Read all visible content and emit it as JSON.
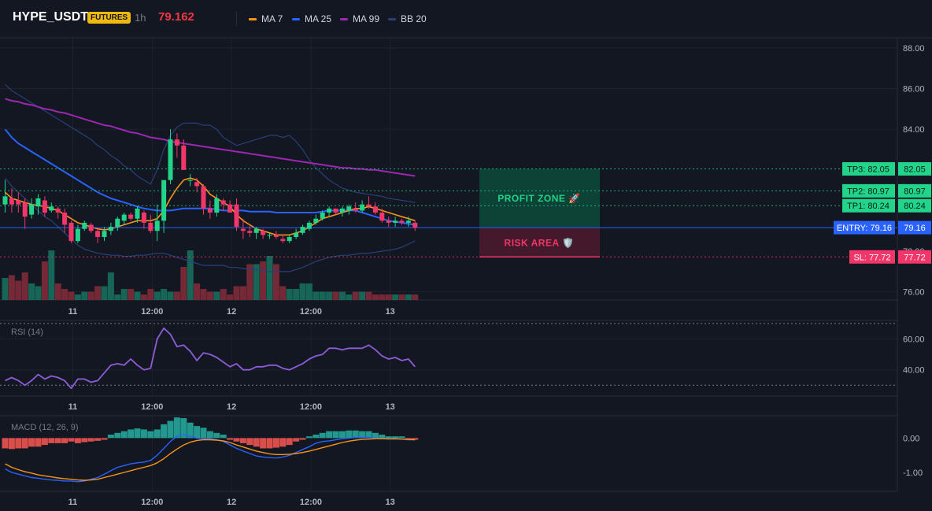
{
  "header": {
    "symbol": "HYPE_USDT",
    "badge": "FUTURES",
    "interval": "1h",
    "last_price": "79.162",
    "indicators": [
      {
        "label": "MA 7",
        "color": "#f7931a"
      },
      {
        "label": "MA 25",
        "color": "#2962ff"
      },
      {
        "label": "MA 99",
        "color": "#9c27b0"
      },
      {
        "label": "BB 20",
        "color": "#2a3f7a"
      }
    ]
  },
  "colors": {
    "up": "#22d48a",
    "down": "#f23669",
    "vol_up": "#16695a",
    "vol_down": "#7a2a38",
    "ma7": "#f7931a",
    "ma25": "#2962ff",
    "ma99": "#9c27b0",
    "bb": "#2a3f7a",
    "entry": "#2962ff",
    "tp": "#22d48a",
    "sl": "#f23669",
    "rsi": "#8e5cd9",
    "macd": "#2962ff",
    "signal": "#f7931a",
    "hist_pos": "#26a69a",
    "hist_neg": "#ef5350"
  },
  "x_axis": {
    "labels": [
      {
        "label": "11",
        "index": 10
      },
      {
        "label": "12:00",
        "index": 22
      },
      {
        "label": "12",
        "index": 34
      },
      {
        "label": "12:00",
        "index": 46
      },
      {
        "label": "13",
        "index": 58
      }
    ]
  },
  "price_pane": {
    "range": [
      75.6,
      88.5
    ],
    "ticks": [
      "88.00",
      "86.00",
      "84.00",
      "76.00"
    ],
    "tick_values": [
      88,
      86,
      84,
      76
    ],
    "hidden_tick": "78.00",
    "hidden_tick_value": 78,
    "bars": [
      {
        "o": 80.3,
        "h": 81.5,
        "l": 79.9,
        "c": 80.7
      },
      {
        "o": 80.6,
        "h": 81.1,
        "l": 79.9,
        "c": 80.3
      },
      {
        "o": 80.5,
        "h": 80.9,
        "l": 79.9,
        "c": 80.3
      },
      {
        "o": 80.4,
        "h": 80.6,
        "l": 79.1,
        "c": 79.7
      },
      {
        "o": 79.8,
        "h": 80.6,
        "l": 79.6,
        "c": 80.3
      },
      {
        "o": 80.2,
        "h": 80.8,
        "l": 79.8,
        "c": 80.6
      },
      {
        "o": 80.5,
        "h": 80.7,
        "l": 79.7,
        "c": 79.9
      },
      {
        "o": 80.0,
        "h": 80.4,
        "l": 79.9,
        "c": 80.2
      },
      {
        "o": 80.1,
        "h": 80.2,
        "l": 79.6,
        "c": 79.9
      },
      {
        "o": 79.9,
        "h": 80.1,
        "l": 78.9,
        "c": 79.3
      },
      {
        "o": 79.4,
        "h": 79.5,
        "l": 78.4,
        "c": 78.5
      },
      {
        "o": 78.5,
        "h": 79.3,
        "l": 78.4,
        "c": 79.1
      },
      {
        "o": 79.1,
        "h": 79.5,
        "l": 79.0,
        "c": 79.4
      },
      {
        "o": 79.3,
        "h": 79.4,
        "l": 78.9,
        "c": 79.0
      },
      {
        "o": 79.0,
        "h": 79.1,
        "l": 78.4,
        "c": 78.7
      },
      {
        "o": 78.7,
        "h": 79.2,
        "l": 78.5,
        "c": 79.0
      },
      {
        "o": 79.0,
        "h": 79.4,
        "l": 78.8,
        "c": 79.2
      },
      {
        "o": 79.2,
        "h": 79.7,
        "l": 79.0,
        "c": 79.6
      },
      {
        "o": 79.5,
        "h": 79.9,
        "l": 79.3,
        "c": 79.8
      },
      {
        "o": 79.8,
        "h": 79.9,
        "l": 79.5,
        "c": 79.6
      },
      {
        "o": 79.6,
        "h": 80.2,
        "l": 79.4,
        "c": 80.1
      },
      {
        "o": 79.9,
        "h": 80.0,
        "l": 79.1,
        "c": 79.4
      },
      {
        "o": 79.4,
        "h": 79.8,
        "l": 78.9,
        "c": 79.0
      },
      {
        "o": 79.0,
        "h": 80.3,
        "l": 78.5,
        "c": 79.5
      },
      {
        "o": 79.5,
        "h": 80.5,
        "l": 78.9,
        "c": 81.5
      },
      {
        "o": 81.5,
        "h": 84.0,
        "l": 81.3,
        "c": 83.5
      },
      {
        "o": 83.5,
        "h": 83.8,
        "l": 82.6,
        "c": 83.2
      },
      {
        "o": 83.2,
        "h": 83.5,
        "l": 82.0,
        "c": 82.0
      },
      {
        "o": 81.5,
        "h": 81.8,
        "l": 81.2,
        "c": 81.5
      },
      {
        "o": 81.4,
        "h": 81.6,
        "l": 80.9,
        "c": 81.2
      },
      {
        "o": 81.2,
        "h": 81.3,
        "l": 79.8,
        "c": 80.1
      },
      {
        "o": 80.1,
        "h": 80.5,
        "l": 79.6,
        "c": 79.9
      },
      {
        "o": 79.9,
        "h": 80.8,
        "l": 79.7,
        "c": 80.6
      },
      {
        "o": 80.5,
        "h": 80.6,
        "l": 80.0,
        "c": 80.3
      },
      {
        "o": 80.3,
        "h": 80.5,
        "l": 79.9,
        "c": 79.9
      },
      {
        "o": 80.3,
        "h": 80.6,
        "l": 79.0,
        "c": 79.2
      },
      {
        "o": 79.1,
        "h": 79.6,
        "l": 78.6,
        "c": 79.0
      },
      {
        "o": 79.0,
        "h": 79.3,
        "l": 78.7,
        "c": 78.9
      },
      {
        "o": 78.9,
        "h": 79.2,
        "l": 78.6,
        "c": 79.1
      },
      {
        "o": 79.0,
        "h": 79.1,
        "l": 78.6,
        "c": 78.8
      },
      {
        "o": 78.8,
        "h": 78.9,
        "l": 78.6,
        "c": 78.8
      },
      {
        "o": 78.8,
        "h": 79.0,
        "l": 78.6,
        "c": 78.7
      },
      {
        "o": 78.6,
        "h": 78.8,
        "l": 78.4,
        "c": 78.5
      },
      {
        "o": 78.5,
        "h": 78.8,
        "l": 78.4,
        "c": 78.7
      },
      {
        "o": 78.7,
        "h": 79.1,
        "l": 78.6,
        "c": 78.9
      },
      {
        "o": 78.9,
        "h": 79.3,
        "l": 78.8,
        "c": 79.2
      },
      {
        "o": 79.1,
        "h": 79.5,
        "l": 79.0,
        "c": 79.4
      },
      {
        "o": 79.4,
        "h": 79.8,
        "l": 79.3,
        "c": 79.6
      },
      {
        "o": 79.6,
        "h": 80.0,
        "l": 79.5,
        "c": 79.9
      },
      {
        "o": 79.9,
        "h": 80.2,
        "l": 79.7,
        "c": 80.1
      },
      {
        "o": 80.1,
        "h": 80.1,
        "l": 79.8,
        "c": 79.9
      },
      {
        "o": 79.9,
        "h": 80.2,
        "l": 79.7,
        "c": 80.1
      },
      {
        "o": 80.0,
        "h": 80.3,
        "l": 79.8,
        "c": 80.2
      },
      {
        "o": 80.1,
        "h": 80.4,
        "l": 79.9,
        "c": 80.0
      },
      {
        "o": 80.0,
        "h": 80.5,
        "l": 79.9,
        "c": 80.3
      },
      {
        "o": 80.3,
        "h": 80.7,
        "l": 80.1,
        "c": 80.2
      },
      {
        "o": 80.2,
        "h": 80.4,
        "l": 79.8,
        "c": 79.9
      },
      {
        "o": 79.9,
        "h": 80.1,
        "l": 79.4,
        "c": 79.5
      },
      {
        "o": 79.5,
        "h": 79.7,
        "l": 79.2,
        "c": 79.4
      },
      {
        "o": 79.4,
        "h": 79.7,
        "l": 79.2,
        "c": 79.5
      },
      {
        "o": 79.5,
        "h": 79.6,
        "l": 79.3,
        "c": 79.4
      },
      {
        "o": 79.4,
        "h": 79.7,
        "l": 79.2,
        "c": 79.5
      },
      {
        "o": 79.4,
        "h": 79.5,
        "l": 79.0,
        "c": 79.16
      }
    ],
    "volumes": [
      8,
      9,
      7,
      10,
      6,
      5,
      14,
      18,
      6,
      4,
      3,
      2,
      3,
      3,
      5,
      5,
      10,
      2,
      4,
      4,
      3,
      2,
      4,
      3,
      4,
      3,
      3,
      12,
      18,
      6,
      4,
      3,
      3,
      4,
      2,
      5,
      5,
      13,
      13,
      14,
      16,
      13,
      5,
      4,
      4,
      6,
      6,
      3,
      3,
      3,
      3,
      3,
      2,
      3,
      3,
      3,
      2,
      2,
      2,
      2,
      2,
      2,
      2
    ],
    "volume_max": 20,
    "ma7": [
      80.9,
      80.6,
      80.5,
      80.4,
      80.3,
      80.25,
      80.2,
      80.1,
      80.0,
      79.8,
      79.6,
      79.4,
      79.3,
      79.2,
      79.1,
      79.05,
      79.1,
      79.2,
      79.3,
      79.4,
      79.5,
      79.5,
      79.5,
      79.6,
      80.0,
      80.6,
      81.1,
      81.5,
      81.6,
      81.5,
      81.2,
      80.8,
      80.6,
      80.4,
      80.2,
      79.8,
      79.5,
      79.3,
      79.1,
      79.0,
      78.9,
      78.8,
      78.8,
      78.8,
      78.9,
      79.0,
      79.2,
      79.4,
      79.6,
      79.7,
      79.8,
      79.9,
      80.0,
      80.1,
      80.1,
      80.2,
      80.1,
      80.0,
      79.9,
      79.8,
      79.7,
      79.6,
      79.5
    ],
    "ma25": [
      84.0,
      83.6,
      83.3,
      83.1,
      82.9,
      82.7,
      82.5,
      82.3,
      82.1,
      81.9,
      81.7,
      81.5,
      81.3,
      81.1,
      80.9,
      80.75,
      80.6,
      80.5,
      80.4,
      80.3,
      80.2,
      80.1,
      80.05,
      80.0,
      80.0,
      80.0,
      80.05,
      80.1,
      80.1,
      80.1,
      80.1,
      80.1,
      80.05,
      80.0,
      80.0,
      80.0,
      80.0,
      79.95,
      79.95,
      79.95,
      79.95,
      79.9,
      79.9,
      79.9,
      79.9,
      79.9,
      79.9,
      79.9,
      79.95,
      80.0,
      80.0,
      80.0,
      80.0,
      80.0,
      79.9,
      79.8,
      79.7,
      79.6,
      79.5,
      79.45,
      79.4,
      79.35,
      79.3
    ],
    "ma99": [
      85.5,
      85.4,
      85.35,
      85.25,
      85.2,
      85.1,
      85.0,
      84.95,
      84.85,
      84.8,
      84.7,
      84.6,
      84.5,
      84.4,
      84.3,
      84.2,
      84.15,
      84.05,
      83.95,
      83.85,
      83.8,
      83.7,
      83.6,
      83.55,
      83.5,
      83.4,
      83.35,
      83.3,
      83.25,
      83.2,
      83.15,
      83.1,
      83.05,
      83.0,
      82.95,
      82.9,
      82.85,
      82.8,
      82.75,
      82.7,
      82.65,
      82.6,
      82.55,
      82.5,
      82.45,
      82.4,
      82.35,
      82.3,
      82.25,
      82.2,
      82.15,
      82.1,
      82.1,
      82.05,
      82.05,
      82.0,
      82.0,
      81.95,
      81.9,
      81.85,
      81.8,
      81.75,
      81.7
    ],
    "bb_upper": [
      86.2,
      85.9,
      85.7,
      85.5,
      85.3,
      85.1,
      84.9,
      84.7,
      84.5,
      84.3,
      84.1,
      83.9,
      83.7,
      83.5,
      83.2,
      83.0,
      82.7,
      82.5,
      82.2,
      82.0,
      81.7,
      81.5,
      81.3,
      82.0,
      83.0,
      83.7,
      84.1,
      84.3,
      84.3,
      84.3,
      84.2,
      84.2,
      84.0,
      83.6,
      83.4,
      83.2,
      83.3,
      83.4,
      83.5,
      83.6,
      83.7,
      83.7,
      83.6,
      83.7,
      83.4,
      83.0,
      82.5,
      82.1,
      81.8,
      81.5,
      81.3,
      81.1,
      81.0,
      80.9,
      80.85,
      80.8,
      80.75,
      80.7,
      80.6,
      80.55,
      80.5,
      80.45,
      80.4
    ],
    "bb_lower": [
      81.6,
      81.2,
      80.9,
      80.6,
      80.3,
      80.0,
      79.7,
      79.5,
      79.2,
      78.9,
      78.6,
      78.3,
      78.1,
      78.0,
      77.9,
      77.85,
      77.8,
      77.8,
      77.75,
      77.75,
      77.8,
      77.8,
      77.85,
      77.9,
      77.9,
      77.8,
      77.7,
      77.6,
      77.5,
      77.4,
      77.3,
      77.3,
      77.3,
      77.3,
      77.2,
      77.2,
      77.15,
      77.1,
      77.1,
      77.05,
      77.0,
      77.0,
      77.0,
      77.0,
      77.1,
      77.2,
      77.35,
      77.5,
      77.6,
      77.7,
      77.75,
      77.8,
      77.8,
      77.85,
      77.9,
      77.9,
      77.95,
      78.0,
      78.05,
      78.1,
      78.2,
      78.35,
      78.5
    ],
    "levels": {
      "tp3": {
        "value": 82.05,
        "label": "TP3: 82.05",
        "axis": "82.05"
      },
      "tp2": {
        "value": 80.97,
        "label": "TP2: 80.97",
        "axis": "80.97"
      },
      "tp1": {
        "value": 80.24,
        "label": "TP1: 80.24",
        "axis": "80.24"
      },
      "entry": {
        "value": 79.16,
        "label": "ENTRY: 79.16",
        "axis": "79.16"
      },
      "sl": {
        "value": 77.72,
        "label": "SL: 77.72",
        "axis": "77.72"
      }
    },
    "zones": {
      "profit_label": "PROFIT ZONE 🚀",
      "risk_label": "RISK AREA 🛡️"
    }
  },
  "rsi_pane": {
    "title": "RSI (14)",
    "range": [
      23,
      72
    ],
    "ticks": [
      "60.00",
      "40.00"
    ],
    "tick_values": [
      60,
      40
    ],
    "upper_band": 70,
    "lower_band": 30,
    "values": [
      33,
      35,
      33,
      30,
      33,
      37,
      34,
      36,
      35,
      33,
      28,
      34,
      34,
      32,
      33,
      38,
      43,
      44,
      43,
      47,
      43,
      40,
      41,
      60,
      67,
      63,
      55,
      56,
      52,
      46,
      51,
      50,
      48,
      45,
      42,
      44,
      40,
      40,
      42,
      42,
      43,
      43,
      41,
      40,
      42,
      44,
      47,
      49,
      50,
      54,
      54,
      53,
      54,
      54,
      54,
      56,
      53,
      49,
      47,
      48,
      46,
      47,
      42
    ]
  },
  "macd_pane": {
    "title": "MACD (12, 26, 9)",
    "range": [
      -1.55,
      0.65
    ],
    "ticks": [
      "0.00",
      "-1.00"
    ],
    "tick_values": [
      0,
      -1
    ],
    "hist": [
      -0.3,
      -0.32,
      -0.3,
      -0.3,
      -0.25,
      -0.25,
      -0.2,
      -0.15,
      -0.15,
      -0.15,
      -0.1,
      -0.15,
      -0.12,
      -0.1,
      -0.08,
      -0.05,
      0.1,
      0.15,
      0.2,
      0.25,
      0.28,
      0.25,
      0.2,
      0.25,
      0.4,
      0.5,
      0.6,
      0.58,
      0.45,
      0.35,
      0.3,
      0.2,
      0.15,
      0.1,
      -0.05,
      -0.1,
      -0.15,
      -0.2,
      -0.25,
      -0.3,
      -0.3,
      -0.28,
      -0.25,
      -0.2,
      -0.1,
      -0.05,
      0.05,
      0.1,
      0.15,
      0.2,
      0.2,
      0.2,
      0.22,
      0.22,
      0.2,
      0.2,
      0.15,
      0.1,
      0.05,
      0.05,
      0.05,
      -0.02,
      -0.05
    ],
    "macd": [
      -0.9,
      -1.0,
      -1.05,
      -1.1,
      -1.15,
      -1.17,
      -1.2,
      -1.22,
      -1.23,
      -1.25,
      -1.25,
      -1.27,
      -1.25,
      -1.2,
      -1.15,
      -1.05,
      -0.95,
      -0.85,
      -0.8,
      -0.75,
      -0.72,
      -0.7,
      -0.65,
      -0.5,
      -0.3,
      -0.1,
      0.05,
      0.1,
      0.05,
      0.0,
      -0.02,
      -0.02,
      -0.05,
      -0.1,
      -0.2,
      -0.3,
      -0.38,
      -0.45,
      -0.52,
      -0.55,
      -0.57,
      -0.58,
      -0.55,
      -0.5,
      -0.42,
      -0.33,
      -0.25,
      -0.15,
      -0.1,
      -0.08,
      -0.05,
      -0.02,
      0.0,
      0.02,
      0.02,
      0.02,
      0.0,
      -0.02,
      -0.03,
      -0.03,
      -0.03,
      -0.05,
      -0.05
    ],
    "signal": [
      -0.75,
      -0.85,
      -0.92,
      -0.98,
      -1.02,
      -1.07,
      -1.1,
      -1.13,
      -1.16,
      -1.18,
      -1.2,
      -1.22,
      -1.23,
      -1.22,
      -1.2,
      -1.15,
      -1.1,
      -1.05,
      -1.0,
      -0.95,
      -0.9,
      -0.85,
      -0.8,
      -0.72,
      -0.6,
      -0.45,
      -0.32,
      -0.2,
      -0.12,
      -0.07,
      -0.05,
      -0.05,
      -0.06,
      -0.08,
      -0.13,
      -0.2,
      -0.26,
      -0.32,
      -0.38,
      -0.42,
      -0.46,
      -0.48,
      -0.48,
      -0.47,
      -0.45,
      -0.42,
      -0.38,
      -0.33,
      -0.28,
      -0.23,
      -0.18,
      -0.13,
      -0.09,
      -0.06,
      -0.04,
      -0.03,
      -0.02,
      -0.02,
      -0.02,
      -0.02,
      -0.03,
      -0.04,
      -0.05
    ]
  }
}
